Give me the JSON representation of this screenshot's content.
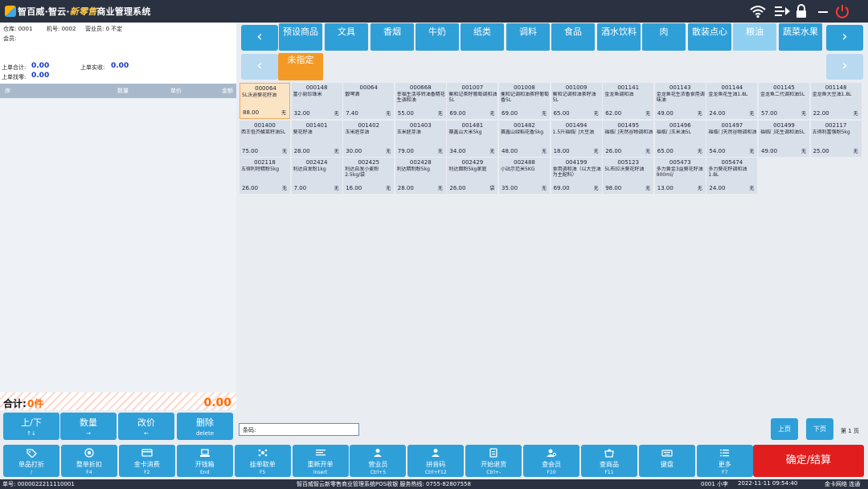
{
  "app": {
    "title_prefix": "智百威·智云·",
    "title_fancy": "新零售",
    "title_suffix": "商业管理系统"
  },
  "info": {
    "warehouse": "仓库:   0001",
    "machine": "机号:  0002",
    "clerk": "营业员:  0 不定",
    "member": "会员:",
    "last_total_label": "上单合计:",
    "last_total": "0.00",
    "last_paid_label": "上单实收:",
    "last_paid": "0.00",
    "last_change_label": "上单找零:",
    "last_change": "0.00"
  },
  "cart": {
    "columns": [
      "序",
      "数量",
      "单价",
      "金额"
    ],
    "total_label": "合计:",
    "count": "0件",
    "amount": "0.00"
  },
  "cart_buttons": [
    {
      "label": "上/下",
      "key": "↑↓"
    },
    {
      "label": "数量",
      "key": "→"
    },
    {
      "label": "改价",
      "key": "←"
    },
    {
      "label": "删除",
      "key": "delete"
    }
  ],
  "categories": [
    "预设商品",
    "文具",
    "香烟",
    "牛奶",
    "纸类",
    "调料",
    "食品",
    "酒水饮料",
    "肉",
    "散装点心",
    "粮油",
    "蔬菜水果"
  ],
  "active_category": "粮油",
  "subcategory": "未指定",
  "products": [
    {
      "code": "000064",
      "name": "5L沃迪葵花籽油",
      "price": "88.00",
      "unit": "无"
    },
    {
      "code": "000148",
      "name": "富小厨珍珠米",
      "price": "32.00",
      "unit": "无"
    },
    {
      "code": "00064",
      "name": "散啤酒",
      "price": "7.40",
      "unit": "无"
    },
    {
      "code": "000668",
      "name": "幸福生活非转油香精花生调和油",
      "price": "55.00",
      "unit": "无"
    },
    {
      "code": "001007",
      "name": "衡和记茶籽葡萄调和油5L",
      "price": "69.00",
      "unit": "无"
    },
    {
      "code": "001008",
      "name": "衡和记调和油茶籽葡萄香5L",
      "price": "69.00",
      "unit": "无"
    },
    {
      "code": "001009",
      "name": "衡和记调和油茶籽油5L",
      "price": "65.00",
      "unit": "无"
    },
    {
      "code": "001141",
      "name": "金龙鱼调和油",
      "price": "62.00",
      "unit": "无"
    },
    {
      "code": "001143",
      "name": "金龙鱼花生浓香食用调味油",
      "price": "49.00",
      "unit": "无"
    },
    {
      "code": "001144",
      "name": "金龙鱼花生油1.8L",
      "price": "24.00",
      "unit": "无"
    },
    {
      "code": "001145",
      "name": "金龙鱼二代调和油5L",
      "price": "57.00",
      "unit": "无"
    },
    {
      "code": "001148",
      "name": "金龙鱼大豆油1.8L",
      "price": "22.00",
      "unit": "无"
    },
    {
      "code": "001400",
      "name": "西王低芥酸菜籽油5L",
      "price": "75.00",
      "unit": "无"
    },
    {
      "code": "001401",
      "name": "葵花籽油",
      "price": "28.00",
      "unit": "无"
    },
    {
      "code": "001402",
      "name": "玉米胚芽油",
      "price": "30.00",
      "unit": "无"
    },
    {
      "code": "001403",
      "name": "玉米胚芽油",
      "price": "79.00",
      "unit": "无"
    },
    {
      "code": "001481",
      "name": "赛鑫山大米5kg",
      "price": "34.00",
      "unit": "无"
    },
    {
      "code": "001482",
      "name": "赛鑫山绿稻花香5kg",
      "price": "48.00",
      "unit": "无"
    },
    {
      "code": "001494",
      "name": "1.5升福临门大豆油",
      "price": "18.00",
      "unit": "无"
    },
    {
      "code": "001495",
      "name": "福临门天然谷物调和油",
      "price": "26.00",
      "unit": "无"
    },
    {
      "code": "001496",
      "name": "福临门玉米油5L",
      "price": "65.00",
      "unit": "无"
    },
    {
      "code": "001497",
      "name": "福临门天然谷物调和油",
      "price": "54.00",
      "unit": "无"
    },
    {
      "code": "001499",
      "name": "福临门花生调和油5L",
      "price": "49.00",
      "unit": "无"
    },
    {
      "code": "002117",
      "name": "五得利富强粉5kg",
      "price": "25.00",
      "unit": "无"
    },
    {
      "code": "002118",
      "name": "五得利特精粉5kg",
      "price": "26.00",
      "unit": "无"
    },
    {
      "code": "002424",
      "name": "利达自发粉1kg",
      "price": "7.00",
      "unit": "无"
    },
    {
      "code": "002425",
      "name": "利达自发小麦粉2.5kg/袋",
      "price": "16.00",
      "unit": "无"
    },
    {
      "code": "002428",
      "name": "利达精制粉5kg",
      "price": "28.00",
      "unit": "无"
    },
    {
      "code": "002429",
      "name": "利达面粉5kg家庭",
      "price": "26.00",
      "unit": "袋"
    },
    {
      "code": "002488",
      "name": "小站示范米5KG",
      "price": "35.00",
      "unit": "无"
    },
    {
      "code": "004199",
      "name": "食用调和油（以大豆油为主配料）",
      "price": "69.00",
      "unit": "无"
    },
    {
      "code": "005123",
      "name": "5L布拉沃葵花籽油",
      "price": "98.00",
      "unit": "无"
    },
    {
      "code": "005473",
      "name": "多力黄金3益葵花籽油900ml/",
      "price": "13.00",
      "unit": "无"
    },
    {
      "code": "005474",
      "name": "多力葵花籽调和油1.8L",
      "price": "24.00",
      "unit": "无"
    }
  ],
  "barcode_label": "条码:",
  "paging": {
    "prev": "上页",
    "next": "下页",
    "page": "第 1 页"
  },
  "function_buttons": [
    {
      "label": "单品打折",
      "key": "/",
      "icon": "tag-icon"
    },
    {
      "label": "整单折扣",
      "key": "F4",
      "icon": "discount-icon"
    },
    {
      "label": "金卡消费",
      "key": "F2",
      "icon": "card-icon"
    },
    {
      "label": "开钱箱",
      "key": "End",
      "icon": "cashbox-icon"
    },
    {
      "label": "挂单取单",
      "key": "F5",
      "icon": "hang-order-icon"
    },
    {
      "label": "重新开单",
      "key": "Insert",
      "icon": "new-order-icon"
    },
    {
      "label": "营业员",
      "key": "Ctrl+5",
      "icon": "clerk-icon"
    },
    {
      "label": "拼音码",
      "key": "Ctrl+F12",
      "icon": "pinyin-icon"
    },
    {
      "label": "开始退货",
      "key": "Ctrl+-",
      "icon": "return-icon"
    },
    {
      "label": "查会员",
      "key": "F10",
      "icon": "member-icon"
    },
    {
      "label": "查商品",
      "key": "F11",
      "icon": "product-icon"
    },
    {
      "label": "键盘",
      "key": "",
      "icon": "keyboard-icon"
    },
    {
      "label": "更多",
      "key": "F7",
      "icon": "more-icon"
    }
  ],
  "confirm_label": "确定/结算",
  "status": {
    "order_no": "单号:  0000022211110001",
    "company": "智百威智云新零售商业管理系统POS收银   服务热线:  0755-82807558",
    "user": "0001 小李",
    "datetime": "2022-11-11 09:54:40",
    "network": "金卡网络 连通"
  },
  "colors": {
    "accent": "#2f9fd8",
    "active_tab": "#8fd0f1",
    "sub_tab": "#f39a26",
    "confirm": "#e21d1d",
    "highlight": "#ff6a00"
  }
}
